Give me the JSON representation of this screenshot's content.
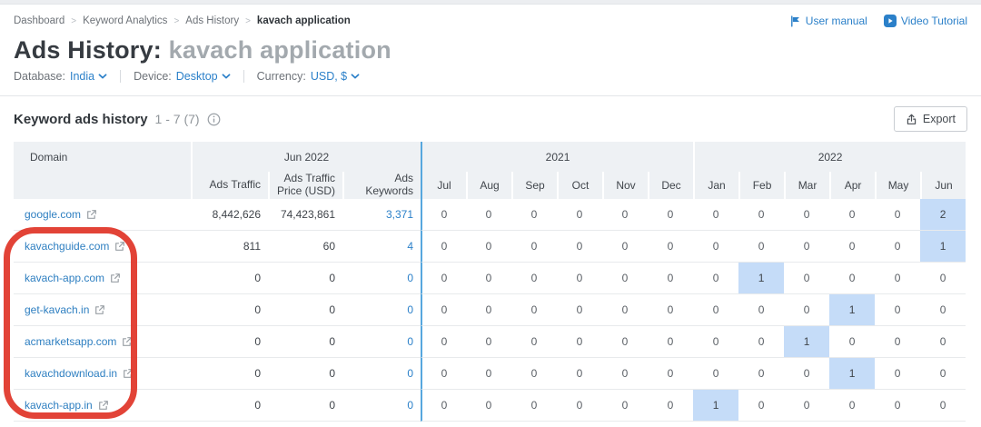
{
  "breadcrumb": {
    "items": [
      "Dashboard",
      "Keyword Analytics",
      "Ads History"
    ],
    "current": "kavach application"
  },
  "header_links": {
    "user_manual": "User manual",
    "video_tutorial": "Video Tutorial"
  },
  "title": {
    "prefix": "Ads History:",
    "keyword": "kavach application"
  },
  "filters": [
    {
      "label": "Database:",
      "value": "India"
    },
    {
      "label": "Device:",
      "value": "Desktop"
    },
    {
      "label": "Currency:",
      "value": "USD, $"
    }
  ],
  "section": {
    "title": "Keyword ads history",
    "range": "1 - 7 (7)",
    "export_label": "Export"
  },
  "table": {
    "domain_header": "Domain",
    "groups": [
      {
        "label": "Jun 2022",
        "columns": [
          "Ads Traffic",
          "Ads Traffic Price (USD)",
          "Ads Keywords"
        ]
      },
      {
        "label": "2021",
        "columns": [
          "Jul",
          "Aug",
          "Sep",
          "Oct",
          "Nov",
          "Dec"
        ]
      },
      {
        "label": "2022",
        "columns": [
          "Jan",
          "Feb",
          "Mar",
          "Apr",
          "May",
          "Jun"
        ]
      }
    ],
    "rows": [
      {
        "domain": "google.com",
        "ads_traffic": "8,442,626",
        "ads_traffic_price": "74,423,861",
        "ads_keywords": "3,371",
        "months": [
          0,
          0,
          0,
          0,
          0,
          0,
          0,
          0,
          0,
          0,
          0,
          2
        ],
        "highlights": [
          11
        ]
      },
      {
        "domain": "kavachguide.com",
        "ads_traffic": "811",
        "ads_traffic_price": "60",
        "ads_keywords": "4",
        "months": [
          0,
          0,
          0,
          0,
          0,
          0,
          0,
          0,
          0,
          0,
          0,
          1
        ],
        "highlights": [
          11
        ]
      },
      {
        "domain": "kavach-app.com",
        "ads_traffic": "0",
        "ads_traffic_price": "0",
        "ads_keywords": "0",
        "months": [
          0,
          0,
          0,
          0,
          0,
          0,
          0,
          1,
          0,
          0,
          0,
          0
        ],
        "highlights": [
          7
        ]
      },
      {
        "domain": "get-kavach.in",
        "ads_traffic": "0",
        "ads_traffic_price": "0",
        "ads_keywords": "0",
        "months": [
          0,
          0,
          0,
          0,
          0,
          0,
          0,
          0,
          0,
          1,
          0,
          0
        ],
        "highlights": [
          9
        ]
      },
      {
        "domain": "acmarketsapp.com",
        "ads_traffic": "0",
        "ads_traffic_price": "0",
        "ads_keywords": "0",
        "months": [
          0,
          0,
          0,
          0,
          0,
          0,
          0,
          0,
          1,
          0,
          0,
          0
        ],
        "highlights": [
          8
        ]
      },
      {
        "domain": "kavachdownload.in",
        "ads_traffic": "0",
        "ads_traffic_price": "0",
        "ads_keywords": "0",
        "months": [
          0,
          0,
          0,
          0,
          0,
          0,
          0,
          0,
          0,
          1,
          0,
          0
        ],
        "highlights": [
          9
        ]
      },
      {
        "domain": "kavach-app.in",
        "ads_traffic": "0",
        "ads_traffic_price": "0",
        "ads_keywords": "0",
        "months": [
          0,
          0,
          0,
          0,
          0,
          0,
          1,
          0,
          0,
          0,
          0,
          0
        ],
        "highlights": [
          6
        ]
      }
    ]
  },
  "colors": {
    "link_blue": "#2b80c9",
    "highlight_blue": "#c5dcf8",
    "separator_blue": "#57a7de",
    "header_bg": "#eef1f4",
    "annotation_red": "#e03528"
  }
}
